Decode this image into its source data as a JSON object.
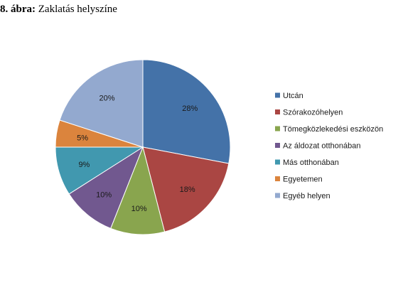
{
  "figure": {
    "number": "8. ábra:",
    "title": "Zaklatás helyszíne"
  },
  "chart_data": {
    "type": "pie",
    "title": "Zaklatás helyszíne",
    "legend_position": "right",
    "start_angle": "12 o'clock, clockwise",
    "slices": [
      {
        "label": "Utcán",
        "value": 28,
        "display": "28%",
        "color": "#4472A8"
      },
      {
        "label": "Szórakozóhelyen",
        "value": 18,
        "display": "18%",
        "color": "#AA4643"
      },
      {
        "label": "Tömegközlekedési eszközön",
        "value": 10,
        "display": "10%",
        "color": "#89A54E"
      },
      {
        "label": "Az áldozat otthonában",
        "value": 10,
        "display": "10%",
        "color": "#71588F"
      },
      {
        "label": "Más otthonában",
        "value": 9,
        "display": "9%",
        "color": "#4198AF"
      },
      {
        "label": "Egyetemen",
        "value": 5,
        "display": "5%",
        "color": "#DB843D"
      },
      {
        "label": "Egyéb helyen",
        "value": 20,
        "display": "20%",
        "color": "#93A9CF"
      }
    ]
  }
}
